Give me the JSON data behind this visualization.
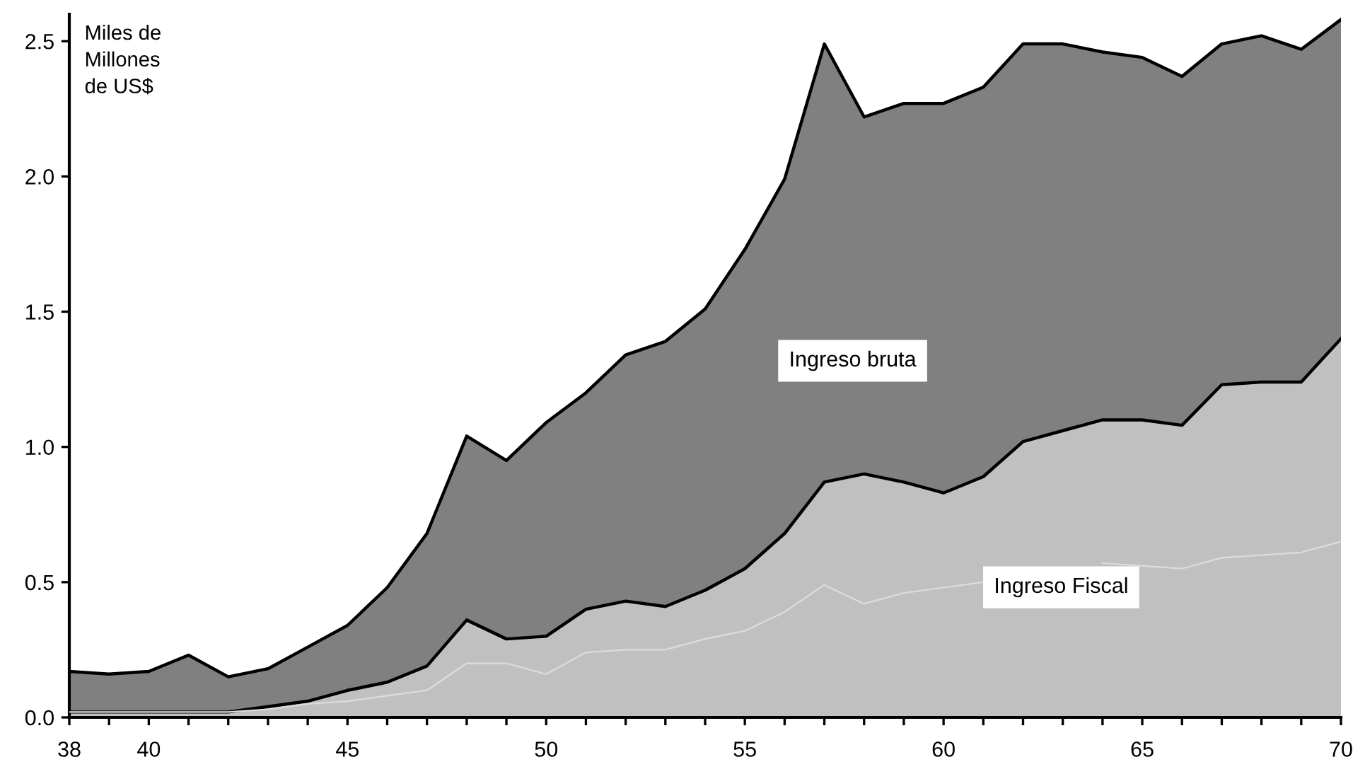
{
  "chart_data": {
    "type": "area",
    "ylabel": "Miles de\nMillones\nde US$",
    "x": [
      38,
      39,
      40,
      41,
      42,
      43,
      44,
      45,
      46,
      47,
      48,
      49,
      50,
      51,
      52,
      53,
      54,
      55,
      56,
      57,
      58,
      59,
      60,
      61,
      62,
      63,
      64,
      65,
      66,
      67,
      68,
      69,
      70
    ],
    "series": [
      {
        "name": "Ingreso bruta",
        "color": "#808080",
        "values": [
          0.17,
          0.16,
          0.17,
          0.23,
          0.15,
          0.18,
          0.26,
          0.34,
          0.48,
          0.68,
          1.04,
          0.95,
          1.09,
          1.2,
          1.34,
          1.39,
          1.51,
          1.73,
          1.99,
          2.49,
          2.22,
          2.27,
          2.27,
          2.33,
          2.49,
          2.49,
          2.46,
          2.44,
          2.37,
          2.49,
          2.52,
          2.47,
          2.58
        ]
      },
      {
        "name": "Ingreso Fiscal",
        "color": "#c0c0c0",
        "values": [
          0.02,
          0.02,
          0.02,
          0.02,
          0.02,
          0.04,
          0.06,
          0.1,
          0.13,
          0.19,
          0.36,
          0.29,
          0.3,
          0.4,
          0.43,
          0.41,
          0.47,
          0.55,
          0.68,
          0.87,
          0.9,
          0.87,
          0.83,
          0.89,
          1.02,
          1.06,
          1.1,
          1.1,
          1.08,
          1.23,
          1.24,
          1.24,
          1.4
        ]
      },
      {
        "type": "line",
        "color": "#dcdcdc",
        "values": [
          0.02,
          0.02,
          0.02,
          0.02,
          0.02,
          0.03,
          0.05,
          0.06,
          0.08,
          0.1,
          0.2,
          0.2,
          0.16,
          0.24,
          0.25,
          0.25,
          0.29,
          0.32,
          0.39,
          0.49,
          0.42,
          0.46,
          0.48,
          0.5,
          null,
          null,
          0.57,
          0.56,
          0.55,
          0.59,
          0.6,
          0.61,
          0.65
        ]
      }
    ],
    "xlim": [
      38,
      70
    ],
    "xticks": [
      38,
      {
        "value": 39,
        "label": null
      },
      40,
      {
        "value": 41,
        "label": null
      },
      {
        "value": 42,
        "label": null
      },
      {
        "value": 43,
        "label": null
      },
      {
        "value": 44,
        "label": null
      },
      45,
      {
        "value": 46,
        "label": null
      },
      {
        "value": 47,
        "label": null
      },
      {
        "value": 48,
        "label": null
      },
      {
        "value": 49,
        "label": null
      },
      50,
      {
        "value": 51,
        "label": null
      },
      {
        "value": 52,
        "label": null
      },
      {
        "value": 53,
        "label": null
      },
      {
        "value": 54,
        "label": null
      },
      55,
      {
        "value": 56,
        "label": null
      },
      {
        "value": 57,
        "label": null
      },
      {
        "value": 58,
        "label": null
      },
      {
        "value": 59,
        "label": null
      },
      60,
      {
        "value": 61,
        "label": null
      },
      {
        "value": 62,
        "label": null
      },
      {
        "value": 63,
        "label": null
      },
      {
        "value": 64,
        "label": null
      },
      65,
      {
        "value": 66,
        "label": null
      },
      {
        "value": 67,
        "label": null
      },
      {
        "value": 68,
        "label": null
      },
      {
        "value": 69,
        "label": null
      },
      70
    ],
    "ylim": [
      0,
      2.6
    ],
    "yticks": [
      {
        "value": 0,
        "label": "0.0"
      },
      {
        "value": 0.5,
        "label": "0.5"
      },
      {
        "value": 1,
        "label": "1.0"
      },
      {
        "value": 1.5,
        "label": "1.5"
      },
      {
        "value": 2,
        "label": "2.0"
      },
      {
        "value": 2.5,
        "label": "2.5"
      }
    ],
    "grid": false,
    "legend": false
  }
}
